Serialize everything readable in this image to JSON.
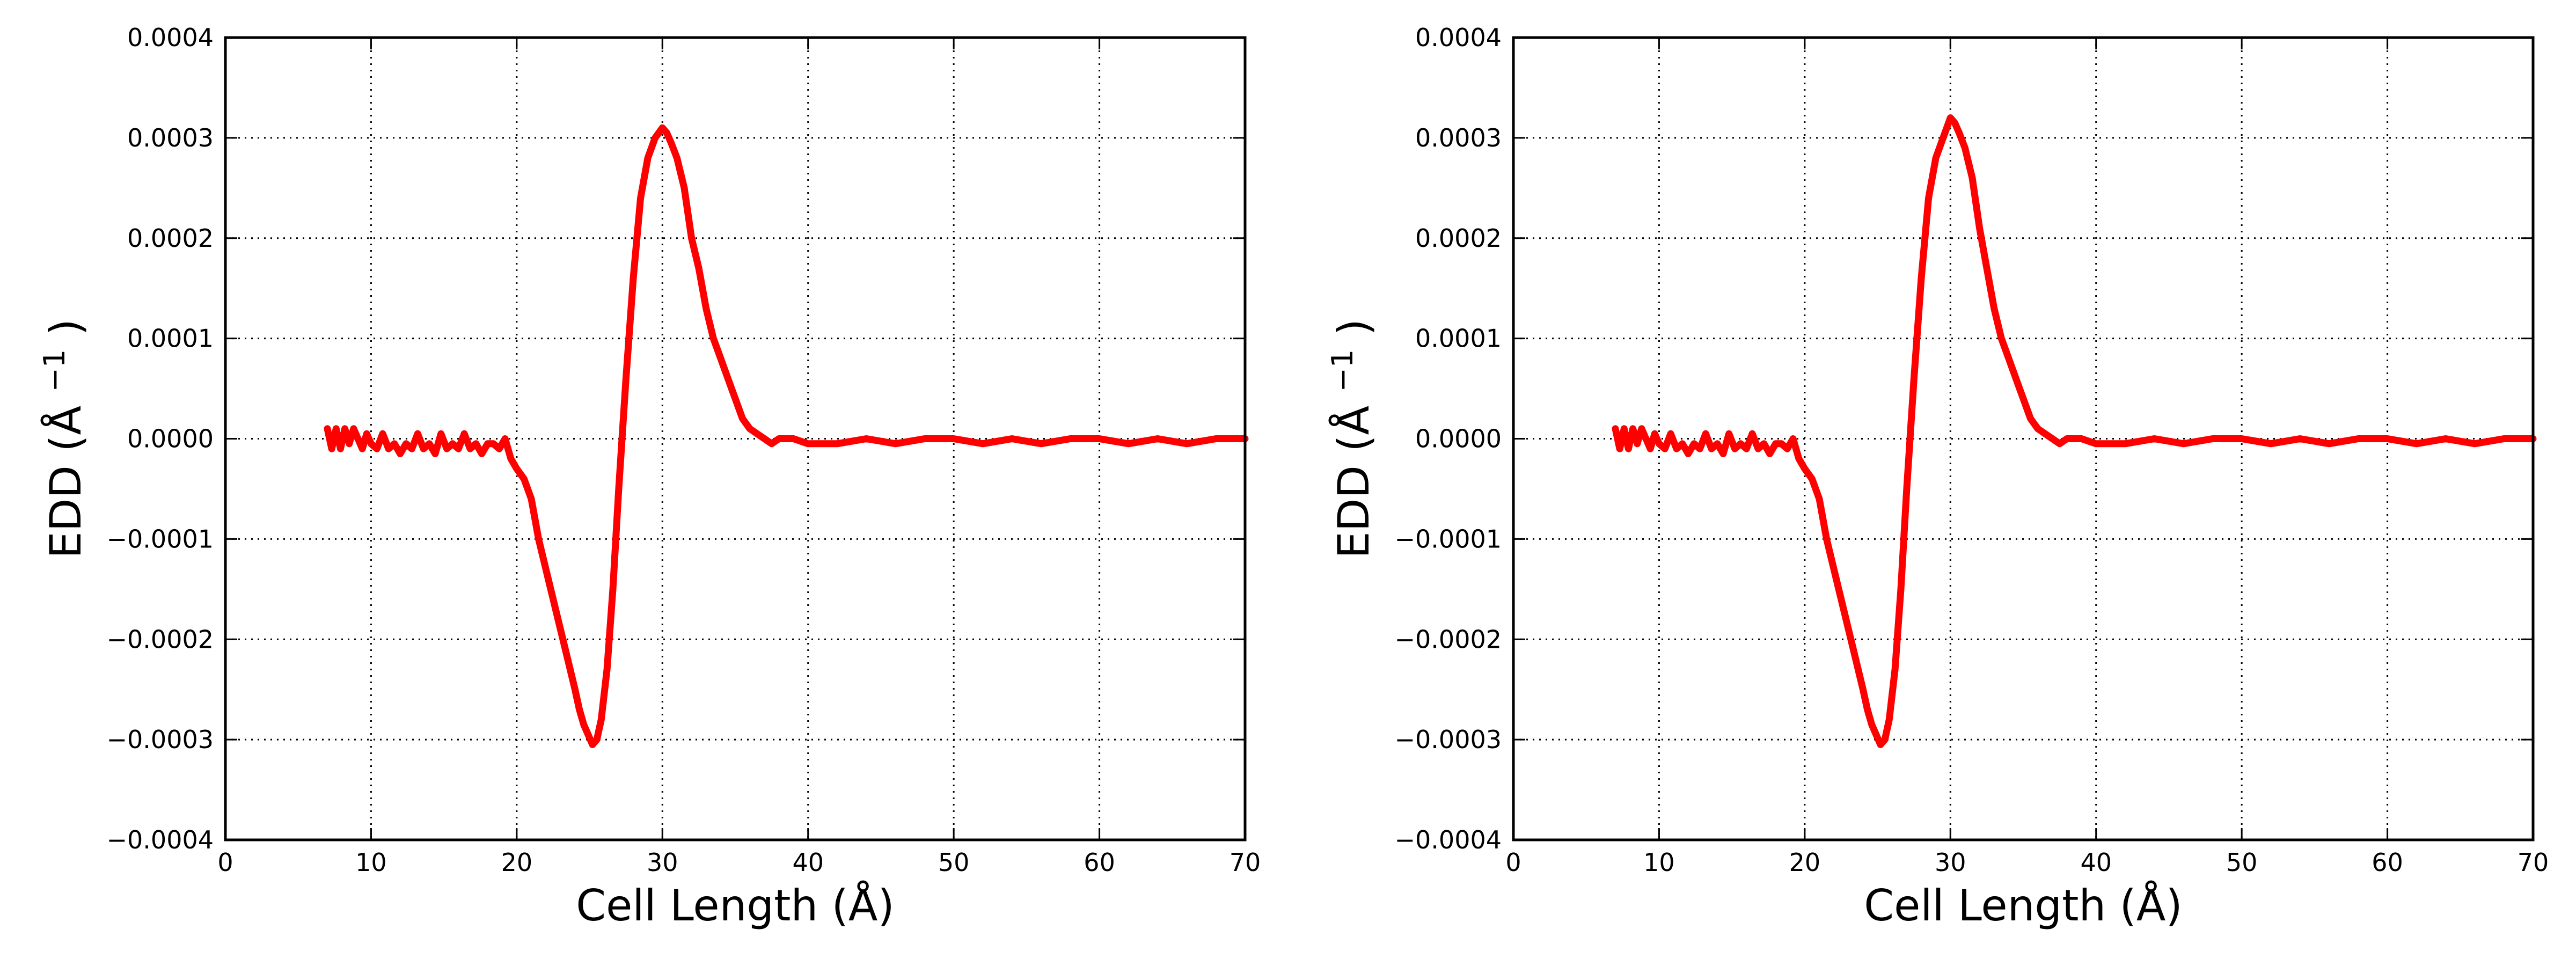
{
  "chart_data": [
    {
      "type": "line",
      "xlabel": "Cell Length (Å)",
      "ylabel_main": "EDD (Å",
      "ylabel_sup": "−1",
      "ylabel_close": ")",
      "xlim": [
        0,
        70
      ],
      "ylim": [
        -0.0004,
        0.0004
      ],
      "x_ticks": [
        0,
        10,
        20,
        30,
        40,
        50,
        60,
        70
      ],
      "x_tick_labels": [
        "0",
        "10",
        "20",
        "30",
        "40",
        "50",
        "60",
        "70"
      ],
      "y_ticks": [
        -0.0004,
        -0.0003,
        -0.0002,
        -0.0001,
        0.0,
        0.0001,
        0.0002,
        0.0003,
        0.0004
      ],
      "y_tick_labels": [
        "−0.0004",
        "−0.0003",
        "−0.0002",
        "−0.0001",
        "0.0000",
        "0.0001",
        "0.0002",
        "0.0003",
        "0.0004"
      ],
      "grid": true,
      "series": [
        {
          "color": "#ff0000",
          "x": [
            7.0,
            7.3,
            7.6,
            7.9,
            8.2,
            8.5,
            8.8,
            9.1,
            9.4,
            9.7,
            10.0,
            10.4,
            10.8,
            11.2,
            11.6,
            12.0,
            12.4,
            12.8,
            13.2,
            13.6,
            14.0,
            14.4,
            14.8,
            15.2,
            15.6,
            16.0,
            16.4,
            16.8,
            17.2,
            17.6,
            18.0,
            18.4,
            18.8,
            19.2,
            19.6,
            20.0,
            20.5,
            21.0,
            21.5,
            22.0,
            22.5,
            23.0,
            23.5,
            24.0,
            24.3,
            24.6,
            24.9,
            25.2,
            25.5,
            25.8,
            26.2,
            26.6,
            27.0,
            27.5,
            28.0,
            28.5,
            29.0,
            29.5,
            30.0,
            30.3,
            30.6,
            31.0,
            31.5,
            32.0,
            32.5,
            33.0,
            33.5,
            34.0,
            34.5,
            35.0,
            35.5,
            36.0,
            36.5,
            37.0,
            37.5,
            38.0,
            39.0,
            40.0,
            42.0,
            44.0,
            46.0,
            48.0,
            50.0,
            52.0,
            54.0,
            56.0,
            58.0,
            60.0,
            62.0,
            64.0,
            66.0,
            68.0,
            70.0
          ],
          "y": [
            1e-05,
            -1e-05,
            1e-05,
            -1e-05,
            1e-05,
            -5e-06,
            1e-05,
            0.0,
            -1e-05,
            5e-06,
            -5e-06,
            -1e-05,
            5e-06,
            -1e-05,
            -5e-06,
            -1.5e-05,
            -5e-06,
            -1e-05,
            5e-06,
            -1e-05,
            -5e-06,
            -1.5e-05,
            5e-06,
            -1e-05,
            -5e-06,
            -1e-05,
            5e-06,
            -1e-05,
            -5e-06,
            -1.5e-05,
            -5e-06,
            -5e-06,
            -1e-05,
            0.0,
            -2e-05,
            -3e-05,
            -4e-05,
            -6e-05,
            -0.0001,
            -0.00013,
            -0.00016,
            -0.00019,
            -0.00022,
            -0.00025,
            -0.00027,
            -0.000285,
            -0.000295,
            -0.000305,
            -0.0003,
            -0.00028,
            -0.00023,
            -0.00015,
            -5e-05,
            6e-05,
            0.00016,
            0.00024,
            0.00028,
            0.0003,
            0.00031,
            0.000305,
            0.000295,
            0.00028,
            0.00025,
            0.0002,
            0.00017,
            0.00013,
            0.0001,
            8e-05,
            6e-05,
            4e-05,
            2e-05,
            1e-05,
            5e-06,
            0.0,
            -5e-06,
            0.0,
            0.0,
            -5e-06,
            -5e-06,
            0.0,
            -5e-06,
            0.0,
            0.0,
            -5e-06,
            0.0,
            -5e-06,
            0.0,
            0.0,
            -5e-06,
            0.0,
            -5e-06,
            0.0,
            0.0
          ]
        }
      ]
    },
    {
      "type": "line",
      "xlabel": "Cell Length (Å)",
      "ylabel_main": "EDD (Å",
      "ylabel_sup": "−1",
      "ylabel_close": ")",
      "xlim": [
        0,
        70
      ],
      "ylim": [
        -0.0004,
        0.0004
      ],
      "x_ticks": [
        0,
        10,
        20,
        30,
        40,
        50,
        60,
        70
      ],
      "x_tick_labels": [
        "0",
        "10",
        "20",
        "30",
        "40",
        "50",
        "60",
        "70"
      ],
      "y_ticks": [
        -0.0004,
        -0.0003,
        -0.0002,
        -0.0001,
        0.0,
        0.0001,
        0.0002,
        0.0003,
        0.0004
      ],
      "y_tick_labels": [
        "−0.0004",
        "−0.0003",
        "−0.0002",
        "−0.0001",
        "0.0000",
        "0.0001",
        "0.0002",
        "0.0003",
        "0.0004"
      ],
      "grid": true,
      "series": [
        {
          "color": "#ff0000",
          "x": [
            7.0,
            7.3,
            7.6,
            7.9,
            8.2,
            8.5,
            8.8,
            9.1,
            9.4,
            9.7,
            10.0,
            10.4,
            10.8,
            11.2,
            11.6,
            12.0,
            12.4,
            12.8,
            13.2,
            13.6,
            14.0,
            14.4,
            14.8,
            15.2,
            15.6,
            16.0,
            16.4,
            16.8,
            17.2,
            17.6,
            18.0,
            18.4,
            18.8,
            19.2,
            19.6,
            20.0,
            20.5,
            21.0,
            21.5,
            22.0,
            22.5,
            23.0,
            23.5,
            24.0,
            24.3,
            24.6,
            24.9,
            25.2,
            25.5,
            25.8,
            26.2,
            26.6,
            27.0,
            27.5,
            28.0,
            28.5,
            29.0,
            29.5,
            30.0,
            30.3,
            30.6,
            31.0,
            31.5,
            32.0,
            32.5,
            33.0,
            33.5,
            34.0,
            34.5,
            35.0,
            35.5,
            36.0,
            36.5,
            37.0,
            37.5,
            38.0,
            39.0,
            40.0,
            42.0,
            44.0,
            46.0,
            48.0,
            50.0,
            52.0,
            54.0,
            56.0,
            58.0,
            60.0,
            62.0,
            64.0,
            66.0,
            68.0,
            70.0
          ],
          "y": [
            1e-05,
            -1e-05,
            1e-05,
            -1e-05,
            1e-05,
            -5e-06,
            1e-05,
            0.0,
            -1e-05,
            5e-06,
            -5e-06,
            -1e-05,
            5e-06,
            -1e-05,
            -5e-06,
            -1.5e-05,
            -5e-06,
            -1e-05,
            5e-06,
            -1e-05,
            -5e-06,
            -1.5e-05,
            5e-06,
            -1e-05,
            -5e-06,
            -1e-05,
            5e-06,
            -1e-05,
            -5e-06,
            -1.5e-05,
            -5e-06,
            -5e-06,
            -1e-05,
            0.0,
            -2e-05,
            -3e-05,
            -4e-05,
            -6e-05,
            -0.0001,
            -0.00013,
            -0.00016,
            -0.00019,
            -0.00022,
            -0.00025,
            -0.00027,
            -0.000285,
            -0.000295,
            -0.000305,
            -0.0003,
            -0.00028,
            -0.00023,
            -0.00015,
            -5e-05,
            6e-05,
            0.00016,
            0.00024,
            0.00028,
            0.0003,
            0.00032,
            0.000315,
            0.000305,
            0.00029,
            0.00026,
            0.00021,
            0.00017,
            0.00013,
            0.0001,
            8e-05,
            6e-05,
            4e-05,
            2e-05,
            1e-05,
            5e-06,
            0.0,
            -5e-06,
            0.0,
            0.0,
            -5e-06,
            -5e-06,
            0.0,
            -5e-06,
            0.0,
            0.0,
            -5e-06,
            0.0,
            -5e-06,
            0.0,
            0.0,
            -5e-06,
            0.0,
            -5e-06,
            0.0,
            0.0
          ]
        }
      ]
    }
  ]
}
